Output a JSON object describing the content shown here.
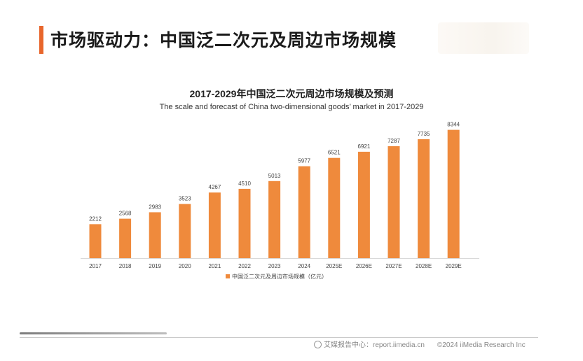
{
  "page": {
    "title": "市场驱动力：中国泛二次元及周边市场规模"
  },
  "footer": {
    "source": "艾媒报告中心：report.iimedia.cn",
    "copyright": "©2024  iiMedia Research Inc"
  },
  "colors": {
    "accent": "#e8662c",
    "bar": "#ef8a3c"
  },
  "chart_data": {
    "type": "bar",
    "title": "2017-2029年中国泛二次元周边市场规模及预测",
    "subtitle": "The scale and forecast of China two-dimensional goods’ market in 2017-2029",
    "xlabel": "",
    "ylabel": "",
    "categories": [
      "2017",
      "2018",
      "2019",
      "2020",
      "2021",
      "2022",
      "2023",
      "2024",
      "2025E",
      "2026E",
      "2027E",
      "2028E",
      "2029E"
    ],
    "series": [
      {
        "name": "中国泛二次元及周边市场规模（亿元）",
        "values": [
          2212,
          2568,
          2983,
          3523,
          4267,
          4510,
          5013,
          5977,
          6521,
          6921,
          7287,
          7735,
          8344
        ]
      }
    ],
    "ylim": [
      0,
      8600
    ],
    "grid": false,
    "legend_position": "bottom"
  }
}
